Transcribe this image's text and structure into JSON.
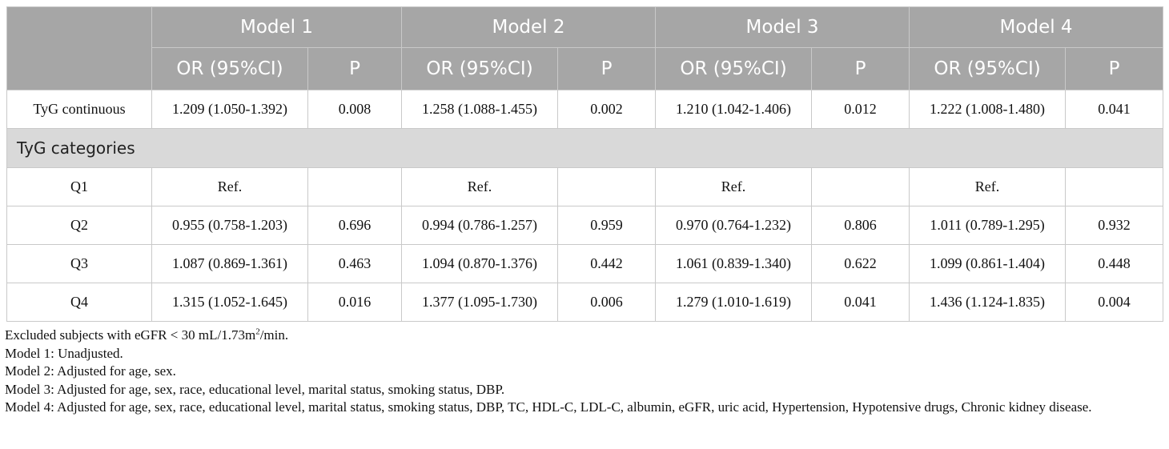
{
  "header": {
    "models": [
      "Model 1",
      "Model 2",
      "Model 3",
      "Model 4"
    ],
    "columns": [
      "OR (95%CI)",
      "P",
      "OR (95%CI)",
      "P",
      "OR (95%CI)",
      "P",
      "OR (95%CI)",
      "P"
    ]
  },
  "table": {
    "rows": [
      {
        "label": "TyG continuous",
        "cells": [
          "1.209 (1.050-1.392)",
          "0.008",
          "1.258 (1.088-1.455)",
          "0.002",
          "1.210 (1.042-1.406)",
          "0.012",
          "1.222 (1.008-1.480)",
          "0.041"
        ]
      },
      {
        "section": "TyG categories"
      },
      {
        "label": "Q1",
        "cells": [
          "Ref.",
          null,
          "Ref.",
          null,
          "Ref.",
          null,
          "Ref.",
          null
        ]
      },
      {
        "label": "Q2",
        "cells": [
          "0.955 (0.758-1.203)",
          "0.696",
          "0.994 (0.786-1.257)",
          "0.959",
          "0.970 (0.764-1.232)",
          "0.806",
          "1.011 (0.789-1.295)",
          "0.932"
        ]
      },
      {
        "label": "Q3",
        "cells": [
          "1.087 (0.869-1.361)",
          "0.463",
          "1.094 (0.870-1.376)",
          "0.442",
          "1.061 (0.839-1.340)",
          "0.622",
          "1.099 (0.861-1.404)",
          "0.448"
        ]
      },
      {
        "label": "Q4",
        "cells": [
          "1.315 (1.052-1.645)",
          "0.016",
          "1.377 (1.095-1.730)",
          "0.006",
          "1.279 (1.010-1.619)",
          "0.041",
          "1.436 (1.124-1.835)",
          "0.004"
        ]
      }
    ]
  },
  "notes": {
    "exclusion": {
      "text": "Excluded subjects with eGFR < 30 mL/1.73m",
      "sup": "2",
      "after": "/min."
    },
    "lines": [
      "Model 1: Unadjusted.",
      "Model 2: Adjusted for age, sex.",
      "Model 3: Adjusted for age, sex, race, educational level, marital status, smoking status, DBP.",
      "Model 4: Adjusted for age, sex, race, educational level, marital status, smoking status, DBP, TC, HDL-C, LDL-C, albumin, eGFR, uric acid, Hypertension, Hypotensive drugs, Chronic kidney disease."
    ]
  }
}
